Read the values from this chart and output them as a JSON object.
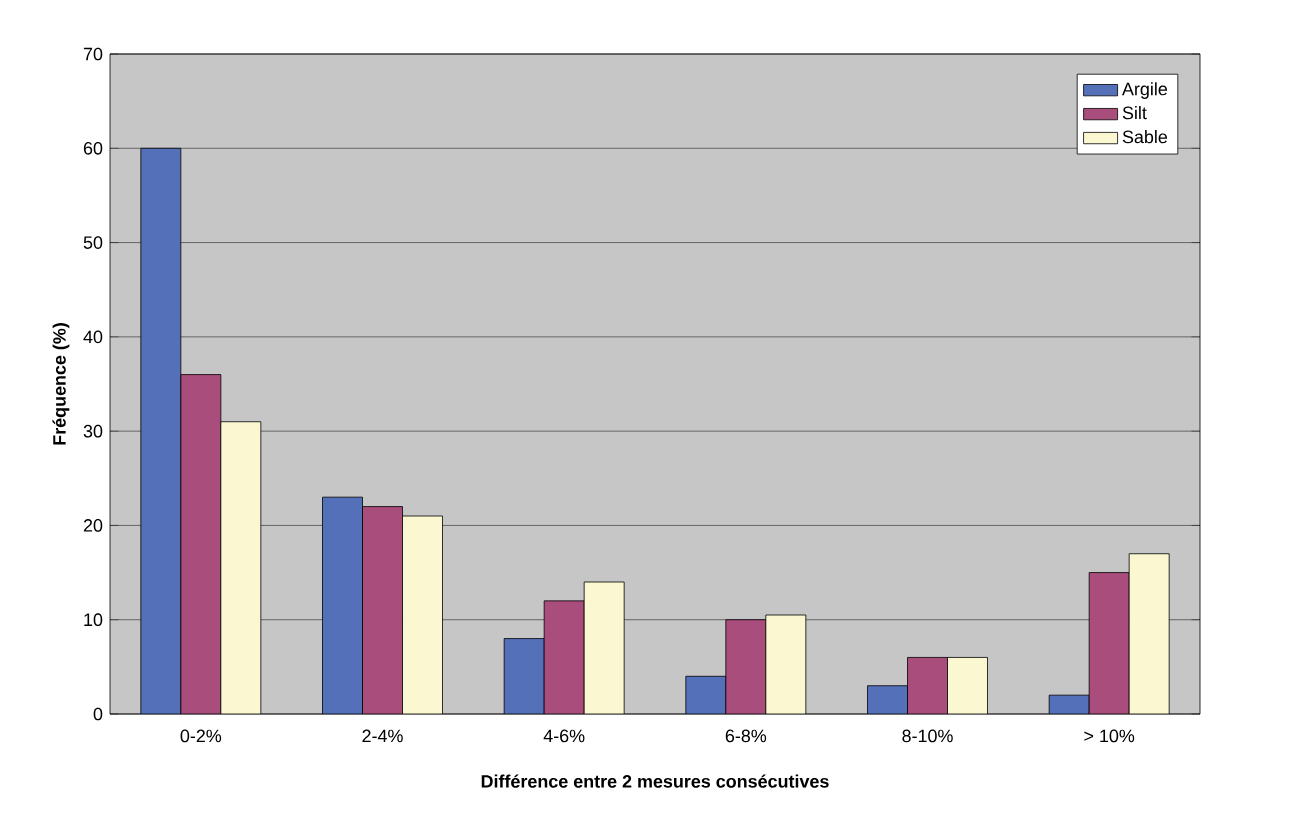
{
  "chart_data": {
    "type": "bar",
    "xlabel": "Différence entre 2 mesures consécutives",
    "ylabel": "Fréquence (%)",
    "categories": [
      "0-2%",
      "2-4%",
      "4-6%",
      "6-8%",
      "8-10%",
      "> 10%"
    ],
    "series": [
      {
        "name": "Argile",
        "color": "#5470b8",
        "values": [
          60,
          23,
          8,
          4,
          3,
          2
        ]
      },
      {
        "name": "Silt",
        "color": "#a84d7c",
        "values": [
          36,
          22,
          12,
          10,
          6,
          15
        ]
      },
      {
        "name": "Sable",
        "color": "#fbf7d0",
        "values": [
          31,
          21,
          14,
          10.5,
          6,
          17
        ]
      }
    ],
    "ylim": [
      0,
      70
    ],
    "yticks": [
      0,
      10,
      20,
      30,
      40,
      50,
      60,
      70
    ],
    "grid": "y",
    "legend": "top right"
  }
}
